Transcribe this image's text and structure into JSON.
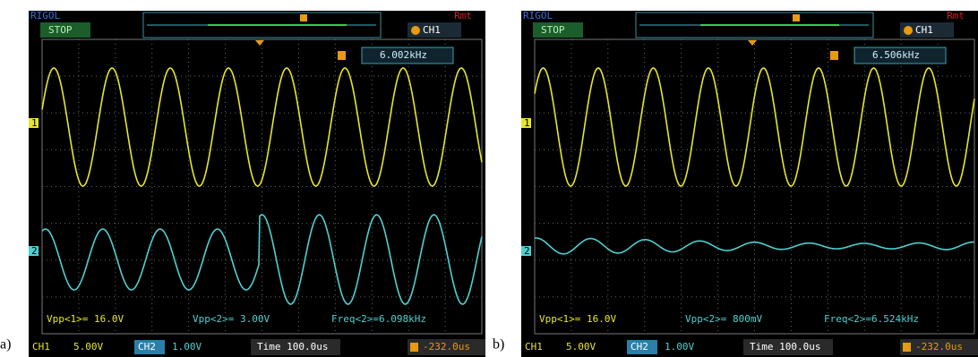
{
  "panels": [
    {
      "label": "a)",
      "brand": "RIGOL",
      "status": "STOP",
      "remote": "Rmt",
      "trigger_source": "CH1",
      "frequency_box": "6.002kHz",
      "channel_markers": [
        "1",
        "2"
      ],
      "measurements": [
        "Vpp<1>= 16.0V",
        "Vpp<2>= 3.00V",
        "Freq<2>=6.098kHz"
      ],
      "bottom": {
        "ch1": "CH1",
        "ch1_scale": "5.00V",
        "ch2": "CH2",
        "ch2_scale": "1.00V",
        "time": "Time 100.0us",
        "trigger_offset": "-232.0us"
      }
    },
    {
      "label": "b)",
      "brand": "RIGOL",
      "status": "STOP",
      "remote": "Rmt",
      "trigger_source": "CH1",
      "frequency_box": "6.506kHz",
      "channel_markers": [
        "1",
        "2"
      ],
      "measurements": [
        "Vpp<1>= 16.0V",
        "Vpp<2>= 800mV",
        "Freq<2>=6.524kHz"
      ],
      "bottom": {
        "ch1": "CH1",
        "ch1_scale": "5.00V",
        "ch2": "CH2",
        "ch2_scale": "1.00V",
        "time": "Time 100.0us",
        "trigger_offset": "-232.0us"
      }
    }
  ]
}
